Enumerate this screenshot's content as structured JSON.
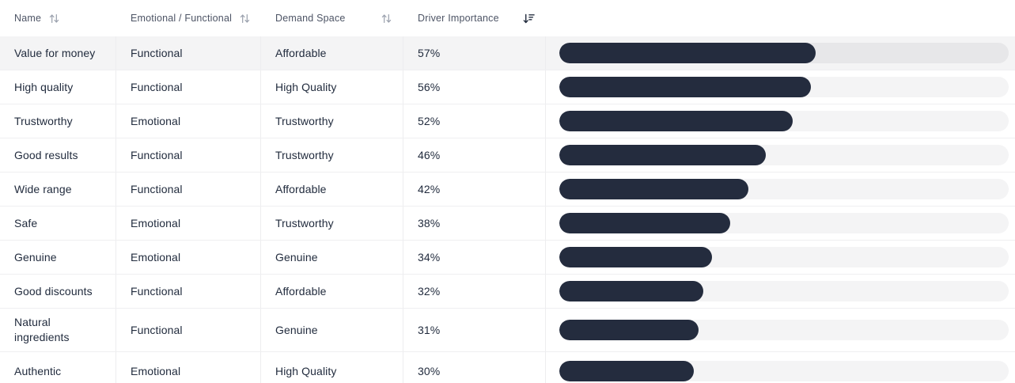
{
  "table": {
    "columns": [
      {
        "label": "Name",
        "sort": "none"
      },
      {
        "label": "Emotional / Functional",
        "sort": "none"
      },
      {
        "label": "Demand Space",
        "sort": "none"
      },
      {
        "label": "Driver Importance",
        "sort": "desc"
      }
    ],
    "rows": [
      {
        "name": "Value for money",
        "type": "Functional",
        "demand_space": "Affordable",
        "importance": "57%",
        "importance_pct": 57,
        "highlighted": true
      },
      {
        "name": "High quality",
        "type": "Functional",
        "demand_space": "High Quality",
        "importance": "56%",
        "importance_pct": 56,
        "highlighted": false
      },
      {
        "name": "Trustworthy",
        "type": "Emotional",
        "demand_space": "Trustworthy",
        "importance": "52%",
        "importance_pct": 52,
        "highlighted": false
      },
      {
        "name": "Good results",
        "type": "Functional",
        "demand_space": "Trustworthy",
        "importance": "46%",
        "importance_pct": 46,
        "highlighted": false
      },
      {
        "name": "Wide range",
        "type": "Functional",
        "demand_space": "Affordable",
        "importance": "42%",
        "importance_pct": 42,
        "highlighted": false
      },
      {
        "name": "Safe",
        "type": "Emotional",
        "demand_space": "Trustworthy",
        "importance": "38%",
        "importance_pct": 38,
        "highlighted": false
      },
      {
        "name": "Genuine",
        "type": "Emotional",
        "demand_space": "Genuine",
        "importance": "34%",
        "importance_pct": 34,
        "highlighted": false
      },
      {
        "name": "Good discounts",
        "type": "Functional",
        "demand_space": "Affordable",
        "importance": "32%",
        "importance_pct": 32,
        "highlighted": false
      },
      {
        "name": "Natural ingredients",
        "type": "Functional",
        "demand_space": "Genuine",
        "importance": "31%",
        "importance_pct": 31,
        "highlighted": false
      },
      {
        "name": "Authentic",
        "type": "Emotional",
        "demand_space": "High Quality",
        "importance": "30%",
        "importance_pct": 30,
        "highlighted": false
      }
    ]
  },
  "chart_data": {
    "type": "bar",
    "categories": [
      "Value for money",
      "High quality",
      "Trustworthy",
      "Good results",
      "Wide range",
      "Safe",
      "Genuine",
      "Good discounts",
      "Natural ingredients",
      "Authentic"
    ],
    "values": [
      57,
      56,
      52,
      46,
      42,
      38,
      34,
      32,
      31,
      30
    ],
    "title": "Driver Importance",
    "xlabel": "",
    "ylabel": "Driver Importance (%)",
    "xlim": [
      0,
      100
    ]
  },
  "icons": {
    "sort_both": "sort-up-down-icon",
    "sort_desc": "sort-descending-icon"
  },
  "colors": {
    "bar_fill": "#242c3e",
    "bar_track": "#f4f4f5",
    "bar_track_highlight": "#e7e7e9",
    "row_highlight_bg": "#f4f4f5",
    "header_text": "#4d5465",
    "body_text": "#222c3e",
    "border": "#ededef"
  }
}
